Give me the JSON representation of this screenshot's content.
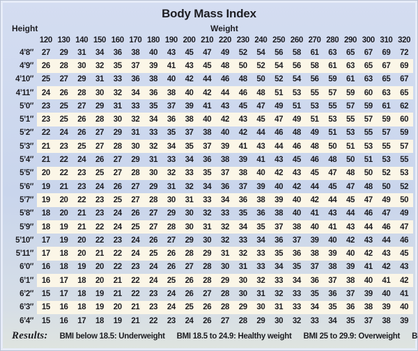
{
  "title": "Body Mass Index",
  "height_axis_label": "Height",
  "weight_axis_label": "Weight",
  "chart_data": {
    "type": "table",
    "title": "Body Mass Index",
    "row_header_label": "Height",
    "col_header_label": "Weight",
    "weights": [
      120,
      130,
      140,
      150,
      160,
      170,
      180,
      190,
      200,
      210,
      220,
      230,
      240,
      250,
      260,
      270,
      280,
      290,
      300,
      310,
      320
    ],
    "rows": [
      {
        "height": "4’8″",
        "bmi": [
          27,
          29,
          31,
          34,
          36,
          38,
          40,
          43,
          45,
          47,
          49,
          52,
          54,
          56,
          58,
          61,
          63,
          65,
          67,
          69,
          72
        ]
      },
      {
        "height": "4’9″",
        "bmi": [
          26,
          28,
          30,
          32,
          35,
          37,
          39,
          41,
          43,
          45,
          48,
          50,
          52,
          54,
          56,
          58,
          61,
          63,
          65,
          67,
          69
        ]
      },
      {
        "height": "4’10″",
        "bmi": [
          25,
          27,
          29,
          31,
          33,
          36,
          38,
          40,
          42,
          44,
          46,
          48,
          50,
          52,
          54,
          56,
          59,
          61,
          63,
          65,
          67
        ]
      },
      {
        "height": "4’11″",
        "bmi": [
          24,
          26,
          28,
          30,
          32,
          34,
          36,
          38,
          40,
          42,
          44,
          46,
          48,
          51,
          53,
          55,
          57,
          59,
          60,
          63,
          65
        ]
      },
      {
        "height": "5’0″",
        "bmi": [
          23,
          25,
          27,
          29,
          31,
          33,
          35,
          37,
          39,
          41,
          43,
          45,
          47,
          49,
          51,
          53,
          55,
          57,
          59,
          61,
          62
        ]
      },
      {
        "height": "5’1″",
        "bmi": [
          23,
          25,
          26,
          28,
          30,
          32,
          34,
          36,
          38,
          40,
          42,
          43,
          45,
          47,
          49,
          51,
          53,
          55,
          57,
          59,
          60
        ]
      },
      {
        "height": "5’2″",
        "bmi": [
          22,
          24,
          26,
          27,
          29,
          31,
          33,
          35,
          37,
          38,
          40,
          42,
          44,
          46,
          48,
          49,
          51,
          53,
          55,
          57,
          59
        ]
      },
      {
        "height": "5’3″",
        "bmi": [
          21,
          23,
          25,
          27,
          28,
          30,
          32,
          34,
          35,
          37,
          39,
          41,
          43,
          44,
          46,
          48,
          50,
          51,
          53,
          55,
          57
        ]
      },
      {
        "height": "5’4″",
        "bmi": [
          21,
          22,
          24,
          26,
          27,
          29,
          31,
          33,
          34,
          36,
          38,
          39,
          41,
          43,
          45,
          46,
          48,
          50,
          51,
          53,
          55
        ]
      },
      {
        "height": "5’5″",
        "bmi": [
          20,
          22,
          23,
          25,
          27,
          28,
          30,
          32,
          33,
          35,
          37,
          38,
          40,
          42,
          43,
          45,
          47,
          48,
          50,
          52,
          53
        ]
      },
      {
        "height": "5’6″",
        "bmi": [
          19,
          21,
          23,
          24,
          26,
          27,
          29,
          31,
          32,
          34,
          36,
          37,
          39,
          40,
          42,
          44,
          45,
          47,
          48,
          50,
          52
        ]
      },
      {
        "height": "5’7″",
        "bmi": [
          19,
          20,
          22,
          23,
          25,
          27,
          28,
          30,
          31,
          33,
          34,
          36,
          38,
          39,
          40,
          42,
          44,
          45,
          47,
          49,
          50
        ]
      },
      {
        "height": "5’8″",
        "bmi": [
          18,
          20,
          21,
          23,
          24,
          26,
          27,
          29,
          30,
          32,
          33,
          35,
          36,
          38,
          40,
          41,
          43,
          44,
          46,
          47,
          49
        ]
      },
      {
        "height": "5’9″",
        "bmi": [
          18,
          19,
          21,
          22,
          24,
          25,
          27,
          28,
          30,
          31,
          32,
          34,
          35,
          37,
          38,
          40,
          41,
          43,
          44,
          46,
          47
        ]
      },
      {
        "height": "5’10″",
        "bmi": [
          17,
          19,
          20,
          22,
          23,
          24,
          26,
          27,
          29,
          30,
          32,
          33,
          34,
          36,
          37,
          39,
          40,
          42,
          43,
          44,
          46
        ]
      },
      {
        "height": "5’11″",
        "bmi": [
          17,
          18,
          20,
          21,
          22,
          24,
          25,
          26,
          28,
          29,
          31,
          32,
          33,
          35,
          36,
          38,
          39,
          40,
          42,
          43,
          45
        ]
      },
      {
        "height": "6’0″",
        "bmi": [
          16,
          18,
          19,
          20,
          22,
          23,
          24,
          26,
          27,
          28,
          30,
          31,
          33,
          34,
          35,
          37,
          38,
          39,
          41,
          42,
          43
        ]
      },
      {
        "height": "6’1″",
        "bmi": [
          16,
          17,
          18,
          20,
          21,
          22,
          24,
          25,
          26,
          28,
          29,
          30,
          32,
          33,
          34,
          36,
          37,
          38,
          40,
          41,
          42
        ]
      },
      {
        "height": "6’2″",
        "bmi": [
          15,
          17,
          18,
          19,
          21,
          22,
          23,
          24,
          26,
          27,
          28,
          30,
          31,
          32,
          33,
          35,
          36,
          37,
          39,
          40,
          41
        ]
      },
      {
        "height": "6’3″",
        "bmi": [
          15,
          16,
          18,
          19,
          20,
          21,
          23,
          24,
          25,
          26,
          28,
          29,
          30,
          31,
          33,
          34,
          35,
          36,
          38,
          39,
          40
        ]
      },
      {
        "height": "6’4″",
        "bmi": [
          15,
          16,
          17,
          18,
          19,
          21,
          22,
          23,
          24,
          26,
          27,
          28,
          29,
          30,
          32,
          33,
          34,
          35,
          37,
          38,
          39
        ]
      }
    ]
  },
  "results": {
    "label": "Results:",
    "items": [
      "BMI below 18.5: Underweight",
      "BMI 18.5 to 24.9: Healthy weight",
      "BMI 25 to 29.9: Overweight",
      "BMI 30 or over: Obese"
    ]
  },
  "colors": {
    "panel_top": "#d4ddf1",
    "panel_mid": "#c9d5ec",
    "panel_low": "#d6dee6",
    "panel_bottom": "#dfe4df",
    "stripe": "#fbf6e7",
    "ink": "#1d1d22"
  }
}
